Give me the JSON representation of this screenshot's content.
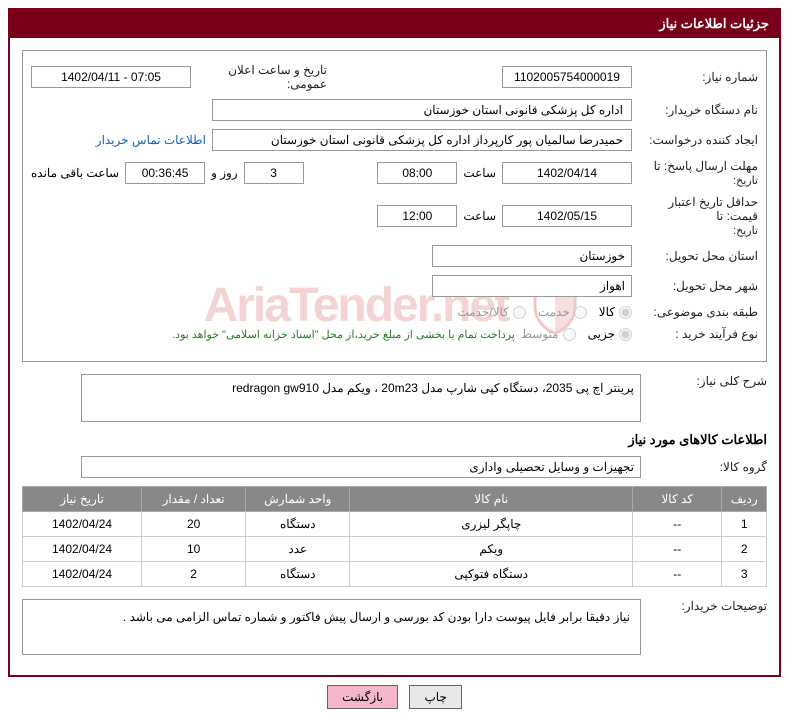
{
  "panel_title": "جزئیات اطلاعات نیاز",
  "need_number": {
    "label": "شماره نیاز:",
    "value": "1102005754000019"
  },
  "announce": {
    "label": "تاریخ و ساعت اعلان عمومی:",
    "value": "07:05 - 1402/04/11"
  },
  "buyer_org": {
    "label": "نام دستگاه خریدار:",
    "value": "اداره کل پزشکی قانونی استان خوزستان"
  },
  "creator": {
    "label": "ایجاد کننده درخواست:",
    "value": "حمیدرضا سالمیان پور کارپرداز اداره کل پزشکی قانونی استان خوزستان",
    "contact_link": "اطلاعات تماس خریدار"
  },
  "deadline": {
    "label": "مهلت ارسال پاسخ: تا",
    "sublabel": "تاریخ:",
    "date": "1402/04/14",
    "time_label": "ساعت",
    "time": "08:00",
    "days": "3",
    "days_label": "روز و",
    "remain_time": "00:36:45",
    "remain_label": "ساعت باقی مانده"
  },
  "price_validity": {
    "label": "حداقل تاریخ اعتبار قیمت: تا",
    "sublabel": "تاریخ:",
    "date": "1402/05/15",
    "time_label": "ساعت",
    "time": "12:00"
  },
  "province": {
    "label": "استان محل تحویل:",
    "value": "خوزستان"
  },
  "city": {
    "label": "شهر محل تحویل:",
    "value": "اهواز"
  },
  "classification": {
    "label": "طبقه بندی موضوعی:",
    "opt1": "کالا",
    "opt2": "خدمت",
    "opt3": "کالا/خدمت"
  },
  "process_type": {
    "label": "نوع فرآیند خرید :",
    "opt1": "جزیی",
    "opt2": "متوسط",
    "note": "پرداخت تمام یا بخشی از مبلغ خرید،از محل \"اسناد خزانه اسلامی\" خواهد بود."
  },
  "overall_desc": {
    "label": "شرح کلی نیاز:",
    "value": "پرینتر اچ پی 2035، دستگاه کپی شارپ مدل 20m23 ، ویکم مدل redragon gw910"
  },
  "items_title": "اطلاعات کالاهای مورد نیاز",
  "group": {
    "label": "گروه کالا:",
    "value": "تجهیزات و وسایل تحصیلی واداری"
  },
  "table": {
    "headers": [
      "ردیف",
      "کد کالا",
      "نام کالا",
      "واحد شمارش",
      "تعداد / مقدار",
      "تاریخ نیاز"
    ],
    "rows": [
      [
        "1",
        "--",
        "چاپگر لیزری",
        "دستگاه",
        "20",
        "1402/04/24"
      ],
      [
        "2",
        "--",
        "ویکم",
        "عدد",
        "10",
        "1402/04/24"
      ],
      [
        "3",
        "--",
        "دستگاه فتوکپی",
        "دستگاه",
        "2",
        "1402/04/24"
      ]
    ]
  },
  "buyer_notes": {
    "label": "توضیحات خریدار:",
    "value": "نیاز دقیقا برابر فایل پیوست دارا بودن کد بورسی و ارسال پیش فاکتور و شماره تماس الزامی می باشد ."
  },
  "buttons": {
    "print": "چاپ",
    "back": "بازگشت"
  },
  "watermark_text": "AriaTender.net",
  "colors": {
    "brand": "#7a0019",
    "th_bg": "#888888",
    "btn_back": "#f4b6c8"
  }
}
